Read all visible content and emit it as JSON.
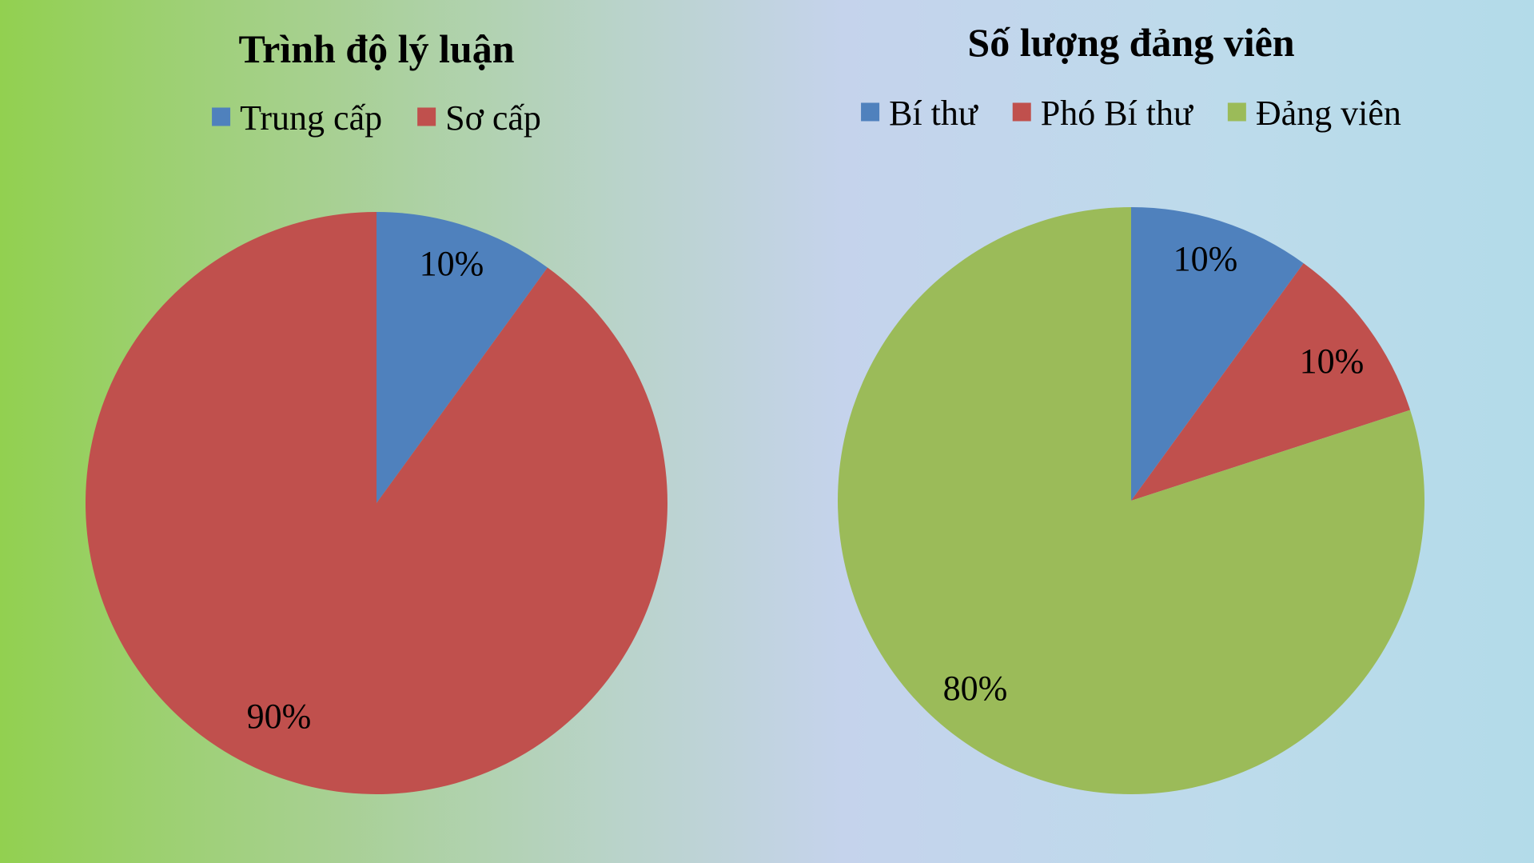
{
  "chart_data": [
    {
      "type": "pie",
      "title": "Trình độ lý luận",
      "categories": [
        "Trung cấp",
        "Sơ cấp"
      ],
      "values": [
        10,
        90
      ],
      "labels": [
        "10%",
        "90%"
      ],
      "colors": [
        "#4f81bd",
        "#c0504d"
      ],
      "legend_position": "top"
    },
    {
      "type": "pie",
      "title": "Số lượng đảng viên",
      "categories": [
        "Bí thư",
        "Phó Bí thư",
        "Đảng viên"
      ],
      "values": [
        10,
        10,
        80
      ],
      "labels": [
        "10%",
        "10%",
        "80%"
      ],
      "colors": [
        "#4f81bd",
        "#c0504d",
        "#9bbb59"
      ],
      "legend_position": "top"
    }
  ]
}
